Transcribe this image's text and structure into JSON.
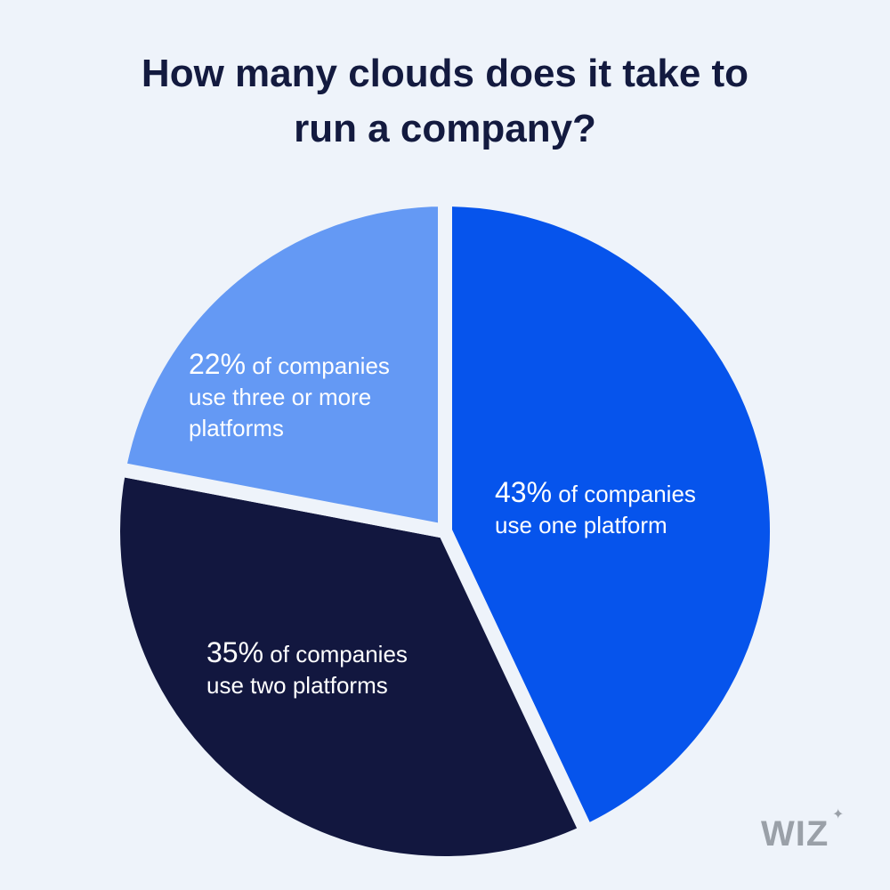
{
  "title": {
    "line1": "How many clouds does it take to",
    "line2": "run a company?"
  },
  "colors": {
    "background": "#eef3fa",
    "one_platform": "#0654ec",
    "two_platforms": "#12173f",
    "three_or_more": "#6499f4",
    "label_text": "#ffffff"
  },
  "chart_data": {
    "type": "pie",
    "title": "How many clouds does it take to run a company?",
    "unit": "%",
    "slices": [
      {
        "value": 43,
        "pct_label": "43%",
        "line1": "of companies",
        "line2": "use one platform",
        "line3": ""
      },
      {
        "value": 35,
        "pct_label": "35%",
        "line1": "of companies",
        "line2": "use two platforms",
        "line3": ""
      },
      {
        "value": 22,
        "pct_label": "22%",
        "line1": "of companies",
        "line2": "use three or more",
        "line3": "platforms"
      }
    ]
  },
  "logo": {
    "text": "WIZ",
    "sparkle": "✦"
  }
}
